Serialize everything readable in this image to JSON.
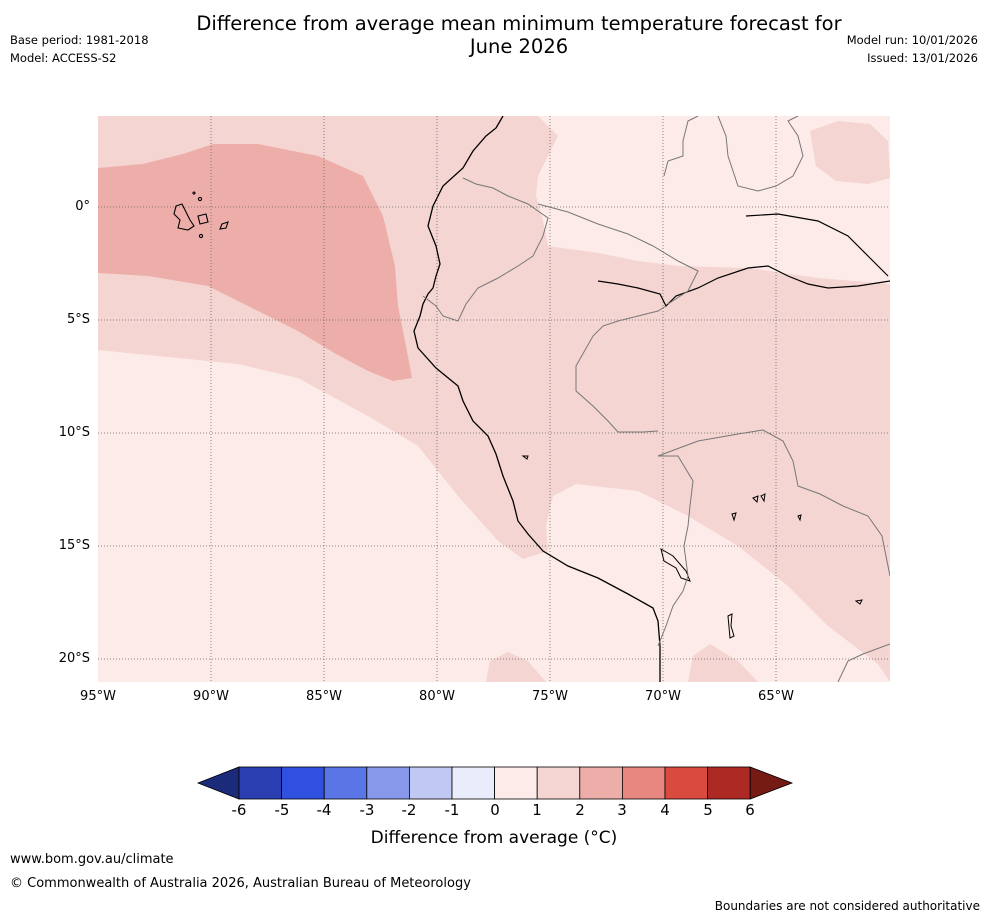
{
  "header": {
    "title_line1": "Difference from average mean minimum temperature forecast for",
    "title_line2": "June 2026",
    "base_period": "Base period: 1981-2018",
    "model": "Model: ACCESS-S2",
    "model_run": "Model run: 10/01/2026",
    "issued": "Issued: 13/01/2026"
  },
  "map": {
    "lat_labels": [
      "0°",
      "5°S",
      "10°S",
      "15°S",
      "20°S"
    ],
    "lon_labels": [
      "95°W",
      "90°W",
      "85°W",
      "80°W",
      "75°W",
      "70°W",
      "65°W"
    ],
    "region": "Western South America and eastern Pacific"
  },
  "colorbar": {
    "ticks": [
      "-6",
      "-5",
      "-4",
      "-3",
      "-2",
      "-1",
      "0",
      "1",
      "2",
      "3",
      "4",
      "5",
      "6"
    ],
    "colors": [
      "#1c2a7a",
      "#2a3eb2",
      "#3050e0",
      "#5a75e6",
      "#8898ea",
      "#c0c8f4",
      "#e8ecfb",
      "#fcebe9",
      "#f4d5d2",
      "#edaeaa",
      "#e8877f",
      "#db4a3e",
      "#ad2923",
      "#761a14"
    ],
    "label": "Difference from average (°C)"
  },
  "footer": {
    "url": "www.bom.gov.au/climate",
    "copyright": "© Commonwealth of Australia 2026, Australian Bureau of Meteorology",
    "disclaimer": "Boundaries are not considered authoritative"
  }
}
